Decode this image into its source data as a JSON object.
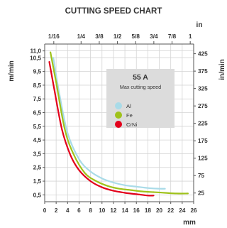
{
  "chart_data": {
    "type": "line",
    "title": "CUTTING SPEED CHART",
    "top_axis_unit": "in",
    "top_ticks": [
      "1/16",
      "1/4",
      "3/8",
      "1/2",
      "5/8",
      "3/4",
      "7/8",
      "1"
    ],
    "top_tick_positions_mm": [
      1.5875,
      6.35,
      9.525,
      12.7,
      15.875,
      19.05,
      22.225,
      25.4
    ],
    "bottom_axis_unit": "mm",
    "bottom_ticks": [
      "0",
      "2",
      "4",
      "6",
      "8",
      "10",
      "12",
      "14",
      "16",
      "18",
      "20",
      "22",
      "24",
      "26"
    ],
    "xlim": [
      0,
      26
    ],
    "left_axis_unit": "m/min",
    "left_ticks": [
      "11,0",
      "10,5",
      "9,5",
      "8,5",
      "7,5",
      "6,5",
      "5,5",
      "4,5",
      "3,5",
      "2,5",
      "1,5",
      "0,5"
    ],
    "left_tick_values": [
      11.0,
      10.5,
      9.5,
      8.5,
      7.5,
      6.5,
      5.5,
      4.5,
      3.5,
      2.5,
      1.5,
      0.5
    ],
    "ylim": [
      0,
      11.5
    ],
    "right_axis_unit": "in/min",
    "right_ticks": [
      "425",
      "375",
      "325",
      "275",
      "225",
      "175",
      "125",
      "75",
      "25"
    ],
    "right_tick_values": [
      425,
      375,
      325,
      275,
      225,
      175,
      125,
      75,
      25
    ],
    "right_axis_factor": 39.3701,
    "box_title": "55 A",
    "box_subtitle": "Max cutting speed",
    "grid": true,
    "series": [
      {
        "name": "Al",
        "color": "#a9dbe8",
        "x": [
          1.5,
          2.5,
          4,
          6,
          8,
          10,
          12,
          14,
          16,
          18,
          20,
          21
        ],
        "y": [
          10.5,
          8.0,
          5.0,
          3.1,
          2.2,
          1.7,
          1.4,
          1.2,
          1.1,
          1.0,
          0.95,
          0.95
        ]
      },
      {
        "name": "Fe",
        "color": "#9fc21a",
        "x": [
          1.0,
          2.0,
          3.5,
          5,
          7,
          9,
          11,
          13,
          15,
          17,
          19,
          21,
          23,
          25
        ],
        "y": [
          10.9,
          8.7,
          5.3,
          3.5,
          2.1,
          1.5,
          1.15,
          0.95,
          0.85,
          0.75,
          0.7,
          0.65,
          0.6,
          0.6
        ]
      },
      {
        "name": "CrNi",
        "color": "#e3001b",
        "x": [
          0.8,
          1.5,
          3,
          4.5,
          6,
          8,
          10,
          12,
          14,
          16,
          18,
          19
        ],
        "y": [
          10.2,
          8.6,
          5.3,
          3.4,
          2.3,
          1.5,
          1.05,
          0.8,
          0.65,
          0.55,
          0.45,
          0.45
        ]
      }
    ]
  }
}
